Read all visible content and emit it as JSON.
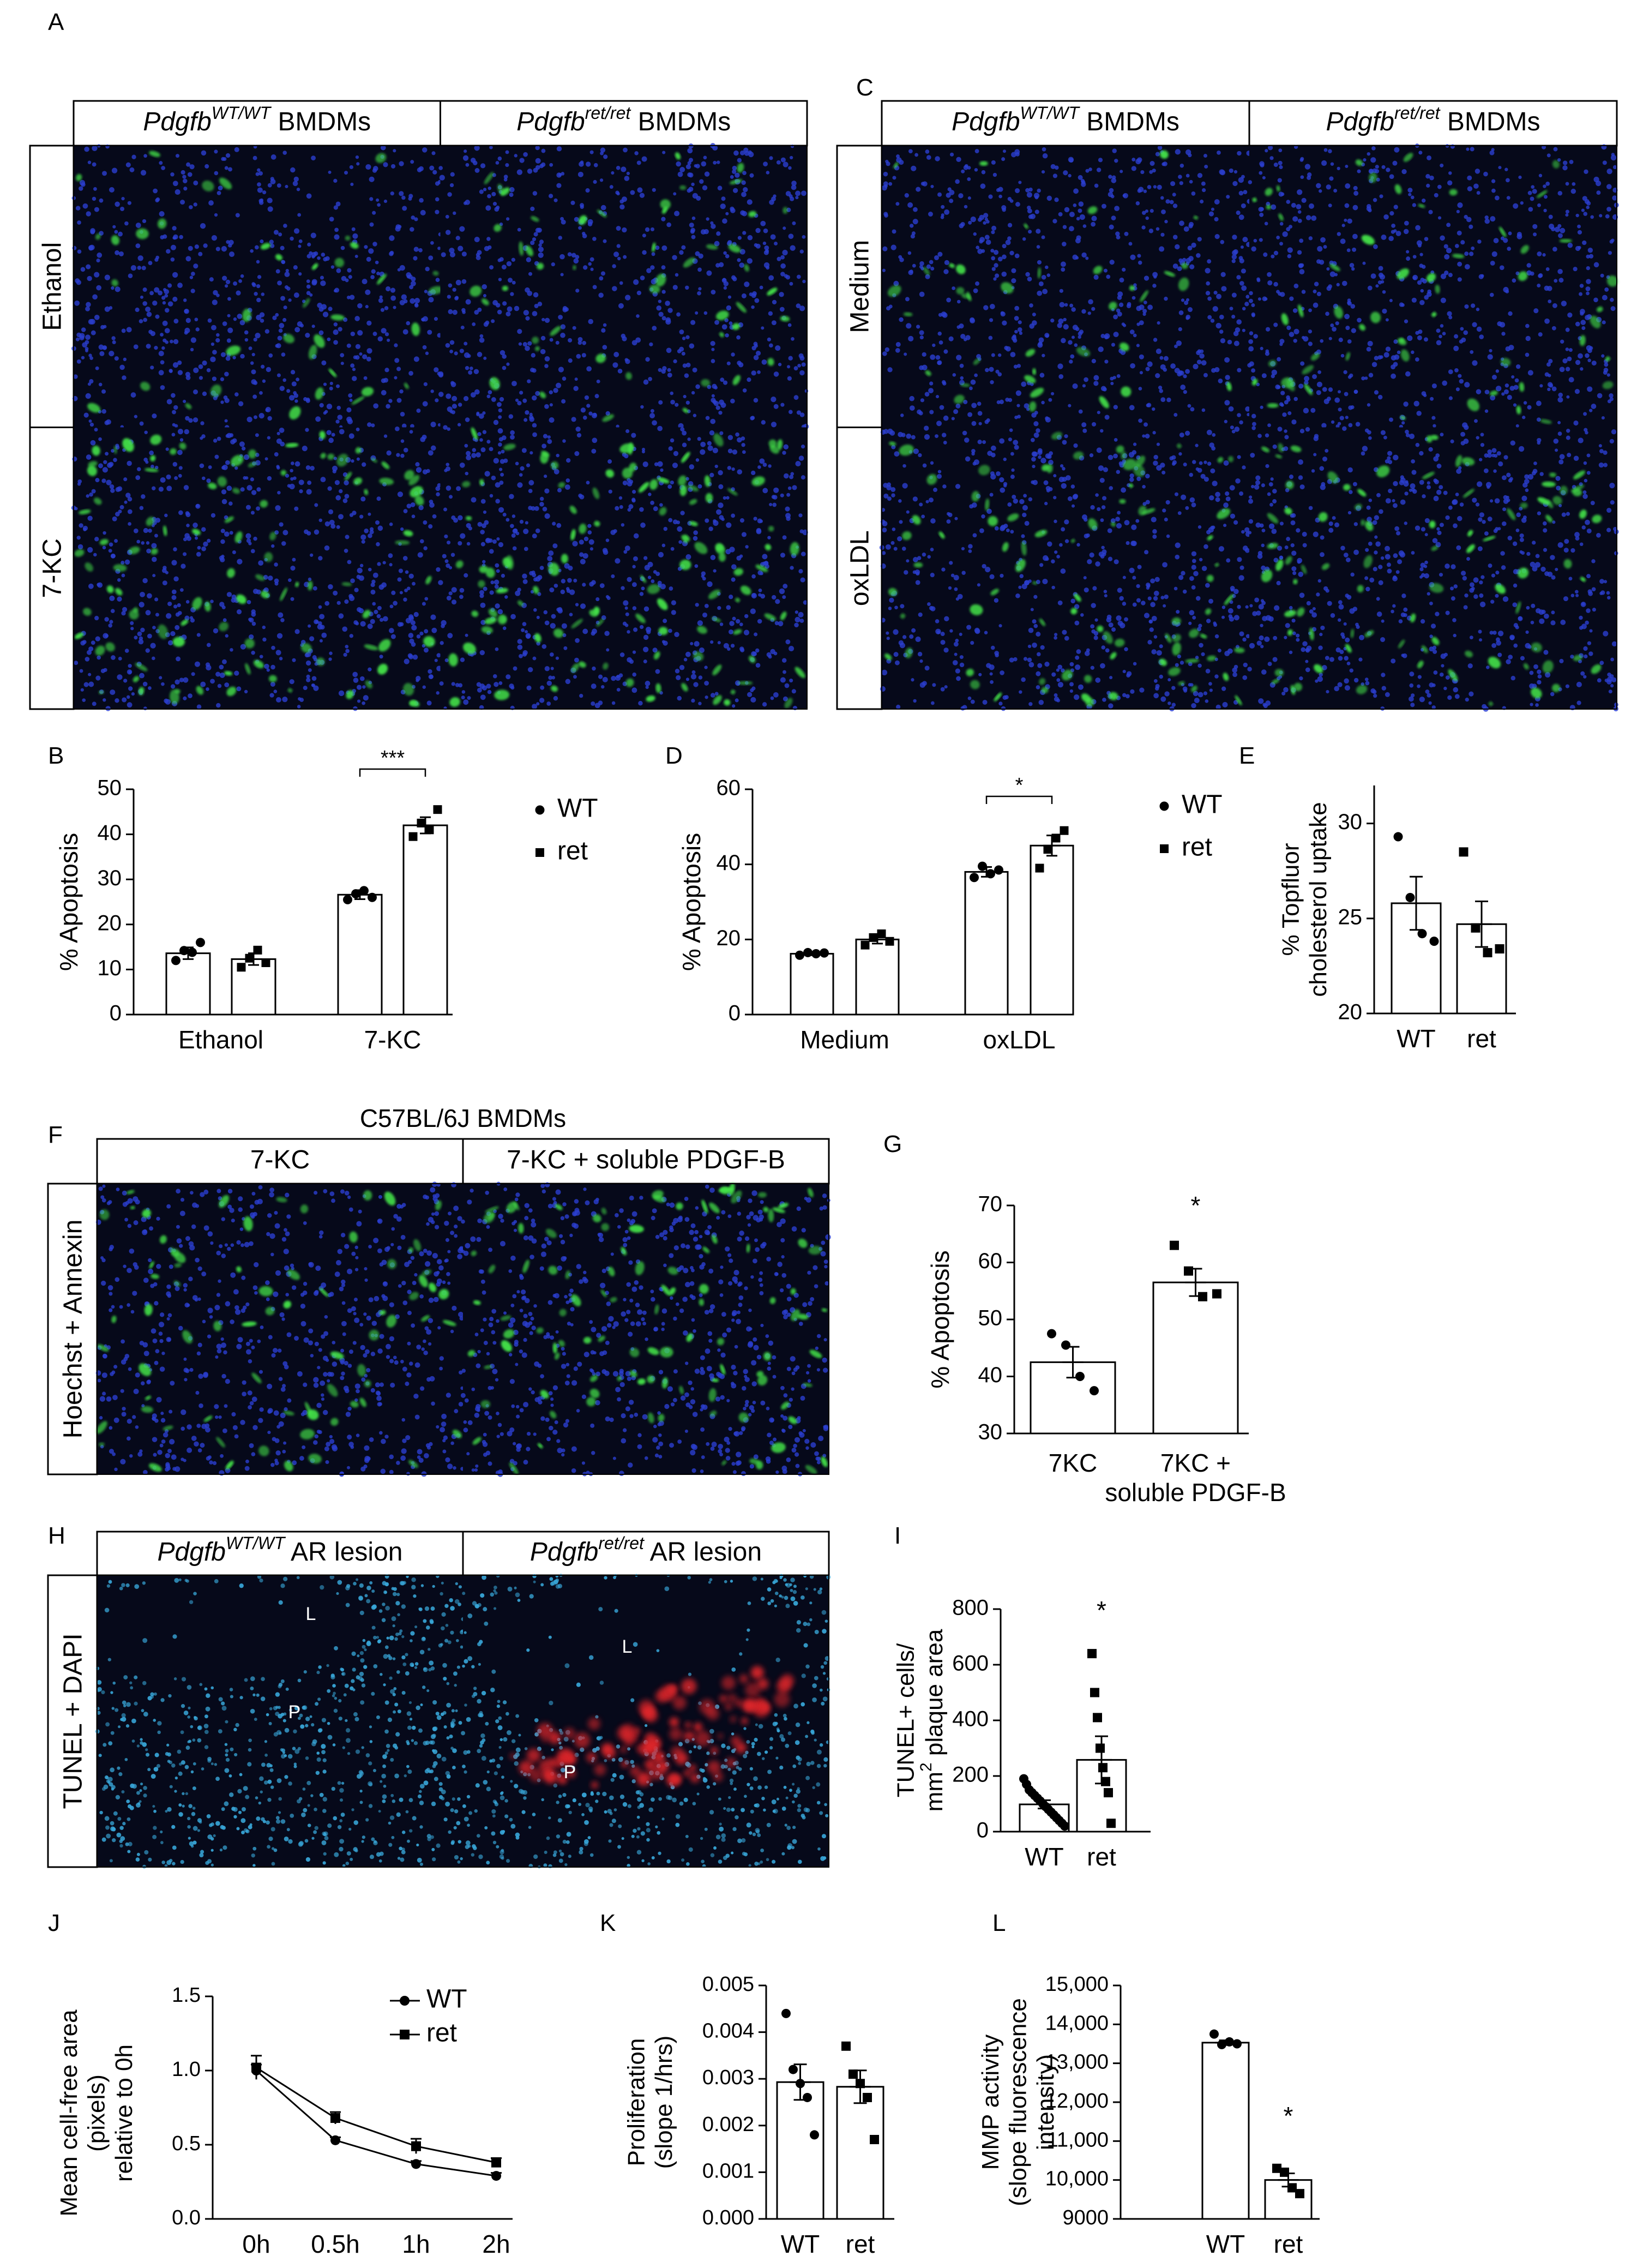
{
  "figure": {
    "panel_letters": [
      "A",
      "B",
      "C",
      "D",
      "E",
      "F",
      "G",
      "H",
      "I",
      "J",
      "K",
      "L"
    ],
    "colors": {
      "text": "#000000",
      "background": "#ffffff",
      "micrograph_bg": "#06091a",
      "dapi_nuclei": "#2b3fd0",
      "annexin_green": "#44e54a",
      "tunel_red": "#e3262a",
      "dapi_cyan": "#38a6d8"
    },
    "micrographs": {
      "A": {
        "column_headers": [
          {
            "gene": "Pdgfb",
            "sup": "WT/WT",
            "rest": " BMDMs"
          },
          {
            "gene": "Pdgfb",
            "sup": "ret/ret",
            "rest": " BMDMs"
          }
        ],
        "row_labels": [
          "Ethanol",
          "7-KC"
        ],
        "stain": "hoechst-annexin"
      },
      "C": {
        "column_headers": [
          {
            "gene": "Pdgfb",
            "sup": "WT/WT",
            "rest": " BMDMs"
          },
          {
            "gene": "Pdgfb",
            "sup": "ret/ret",
            "rest": " BMDMs"
          }
        ],
        "row_labels": [
          "Medium",
          "oxLDL"
        ],
        "stain": "hoechst-annexin"
      },
      "F": {
        "title": "C57BL/6J BMDMs",
        "column_headers": [
          {
            "gene": "",
            "sup": "",
            "rest": "7-KC"
          },
          {
            "gene": "",
            "sup": "",
            "rest": "7-KC + soluble PDGF-B"
          }
        ],
        "row_labels": [
          "Hoechst + Annexin"
        ],
        "stain": "hoechst-annexin"
      },
      "H": {
        "column_headers": [
          {
            "gene": "Pdgfb",
            "sup": "WT/WT",
            "rest": " AR lesion"
          },
          {
            "gene": "Pdgfb",
            "sup": "ret/ret",
            "rest": " AR lesion"
          }
        ],
        "row_labels": [
          "TUNEL + DAPI"
        ],
        "lesion_marks": [
          "L",
          "P",
          "L",
          "P"
        ],
        "stain": "tunel-dapi"
      }
    }
  },
  "chart_data": [
    {
      "panel": "B",
      "type": "bar",
      "categories": [
        "Ethanol",
        "7-KC"
      ],
      "ylabel": "% Apoptosis",
      "ylim": [
        0,
        50
      ],
      "yticks": [
        "0",
        "10",
        "20",
        "30",
        "40",
        "50"
      ],
      "series": [
        {
          "name": "WT",
          "marker": "circle",
          "means": [
            13.6,
            26.6
          ],
          "sem": [
            1.3,
            1.0
          ],
          "points": [
            [
              12,
              14.2,
              13.8,
              16
            ],
            [
              25.5,
              26.8,
              27.5,
              26
            ]
          ]
        },
        {
          "name": "ret",
          "marker": "square",
          "means": [
            12.3,
            42.0
          ],
          "sem": [
            1.3,
            1.8
          ],
          "points": [
            [
              10.5,
              12.5,
              14.3,
              11.5
            ],
            [
              39.5,
              42.5,
              41,
              45.5
            ]
          ]
        }
      ],
      "significance": [
        {
          "between": [
            "WT",
            "ret"
          ],
          "category": "7-KC",
          "label": "***"
        }
      ],
      "legend": {
        "entries": [
          "WT",
          "ret"
        ],
        "placement": "right"
      }
    },
    {
      "panel": "D",
      "type": "bar",
      "categories": [
        "Medium",
        "oxLDL"
      ],
      "ylabel": "% Apoptosis",
      "ylim": [
        0,
        60
      ],
      "yticks": [
        "0",
        "20",
        "40",
        "60"
      ],
      "series": [
        {
          "name": "WT",
          "marker": "circle",
          "means": [
            16.2,
            38.0
          ],
          "sem": [
            0.4,
            1.3
          ],
          "points": [
            [
              15.8,
              16.5,
              16.2,
              16.4
            ],
            [
              36.5,
              39.5,
              37.5,
              38.5
            ]
          ]
        },
        {
          "name": "ret",
          "marker": "square",
          "means": [
            20.0,
            45.0
          ],
          "sem": [
            1.1,
            2.7
          ],
          "points": [
            [
              18.5,
              20.5,
              21.5,
              19.5
            ],
            [
              39,
              44,
              47,
              49
            ]
          ]
        }
      ],
      "significance": [
        {
          "between": [
            "WT",
            "ret"
          ],
          "category": "oxLDL",
          "label": "*"
        }
      ],
      "legend": {
        "entries": [
          "WT",
          "ret"
        ],
        "placement": "right"
      }
    },
    {
      "panel": "E",
      "type": "bar",
      "categories": [
        "WT",
        "ret"
      ],
      "ylabel": "% Topfluor cholesterol uptake",
      "ylabel_lines": [
        "% Topfluor",
        "cholesterol uptake"
      ],
      "ylim": [
        20,
        32
      ],
      "yticks": [
        "20",
        "25",
        "30"
      ],
      "series": [
        {
          "name": "WT",
          "marker": "circle",
          "mean": 25.8,
          "sem": 1.4,
          "points": [
            29.3,
            26.1,
            24.2,
            23.8
          ]
        },
        {
          "name": "ret",
          "marker": "square",
          "mean": 24.7,
          "sem": 1.2,
          "points": [
            28.5,
            24.5,
            23.2,
            23.4
          ]
        }
      ]
    },
    {
      "panel": "G",
      "type": "bar",
      "categories": [
        "7KC",
        "7KC +\nsoluble PDGF-B"
      ],
      "category_lines": [
        [
          "7KC"
        ],
        [
          "7KC +",
          "soluble PDGF-B"
        ]
      ],
      "ylabel": "% Apoptosis",
      "ylim": [
        30,
        70
      ],
      "yticks": [
        "30",
        "40",
        "50",
        "60",
        "70"
      ],
      "series": [
        {
          "name": "7KC",
          "marker": "circle",
          "mean": 42.5,
          "sem": 2.7,
          "points": [
            47.5,
            45.5,
            40,
            37.5
          ]
        },
        {
          "name": "7KC + soluble PDGF-B",
          "marker": "square",
          "mean": 56.5,
          "sem": 2.4,
          "points": [
            63,
            58.5,
            54,
            54.5
          ]
        }
      ],
      "significance": [
        {
          "category": "7KC +\nsoluble PDGF-B",
          "label": "*"
        }
      ]
    },
    {
      "panel": "I",
      "type": "bar",
      "categories": [
        "WT",
        "ret"
      ],
      "ylabel": "TUNEL+ cells/ mm2 plaque area",
      "ylabel_lines": [
        "TUNEL+ cells/",
        "mm",
        "2",
        " plaque area"
      ],
      "ylim": [
        0,
        800
      ],
      "yticks": [
        "0",
        "200",
        "400",
        "600",
        "800"
      ],
      "series": [
        {
          "name": "WT",
          "marker": "circle",
          "mean": 98,
          "sem": 15,
          "points": [
            190,
            170,
            150,
            140,
            130,
            120,
            110,
            100,
            90,
            80,
            70,
            60,
            50,
            40,
            30,
            20
          ]
        },
        {
          "name": "ret",
          "marker": "square",
          "mean": 258,
          "sem": 85,
          "points": [
            640,
            500,
            410,
            300,
            230,
            180,
            140,
            30
          ]
        }
      ],
      "significance": [
        {
          "category": "ret",
          "label": "*"
        }
      ]
    },
    {
      "panel": "J",
      "type": "line",
      "categories": [
        "0h",
        "0.5h",
        "1h",
        "2h"
      ],
      "ylabel": "Mean cell-free area (pixels) relative to 0h",
      "ylabel_lines": [
        "Mean cell-free area",
        "(pixels)",
        "relative to 0h"
      ],
      "ylim": [
        0,
        1.5
      ],
      "yticks": [
        "0.0",
        "0.5",
        "1.0",
        "1.5"
      ],
      "series": [
        {
          "name": "WT",
          "marker": "circle",
          "values": [
            1.0,
            0.53,
            0.37,
            0.29
          ],
          "sem": [
            0.04,
            0.02,
            0.02,
            0.02
          ]
        },
        {
          "name": "ret",
          "marker": "square",
          "values": [
            1.02,
            0.68,
            0.49,
            0.38
          ],
          "sem": [
            0.08,
            0.04,
            0.05,
            0.03
          ]
        }
      ],
      "legend": {
        "entries": [
          "WT",
          "ret"
        ],
        "placement": "top-right"
      }
    },
    {
      "panel": "K",
      "type": "bar",
      "categories": [
        "WT",
        "ret"
      ],
      "ylabel": "Proliferation (slope 1/hrs)",
      "ylabel_lines": [
        "Proliferation",
        "(slope 1/hrs)"
      ],
      "ylim": [
        0,
        0.005
      ],
      "yticks": [
        "0.000",
        "0.001",
        "0.002",
        "0.003",
        "0.004",
        "0.005"
      ],
      "series": [
        {
          "name": "WT",
          "marker": "circle",
          "mean": 0.00293,
          "sem": 0.00038,
          "points": [
            0.0044,
            0.0032,
            0.0029,
            0.0026,
            0.0018
          ]
        },
        {
          "name": "ret",
          "marker": "square",
          "mean": 0.00283,
          "sem": 0.00035,
          "points": [
            0.0037,
            0.0031,
            0.0029,
            0.0026,
            0.0017
          ]
        }
      ]
    },
    {
      "panel": "L",
      "type": "bar",
      "categories": [
        "WT",
        "ret"
      ],
      "ylabel": "MMP activity (slope fluorescence intensity)",
      "ylabel_lines": [
        "MMP activity",
        "(slope fluorescence",
        "intensity)"
      ],
      "ylim": [
        9000,
        15000
      ],
      "yticks": [
        "9000",
        "10,000",
        "11,000",
        "12,000",
        "13,000",
        "14,000",
        "15,000"
      ],
      "series": [
        {
          "name": "WT",
          "marker": "circle",
          "mean": 13530,
          "sem": 60,
          "points": [
            13750,
            13480,
            13550,
            13500
          ]
        },
        {
          "name": "ret",
          "marker": "square",
          "mean": 10000,
          "sem": 170,
          "points": [
            10300,
            10200,
            9800,
            9650
          ]
        }
      ],
      "significance": [
        {
          "category": "ret",
          "label": "*"
        }
      ]
    }
  ]
}
